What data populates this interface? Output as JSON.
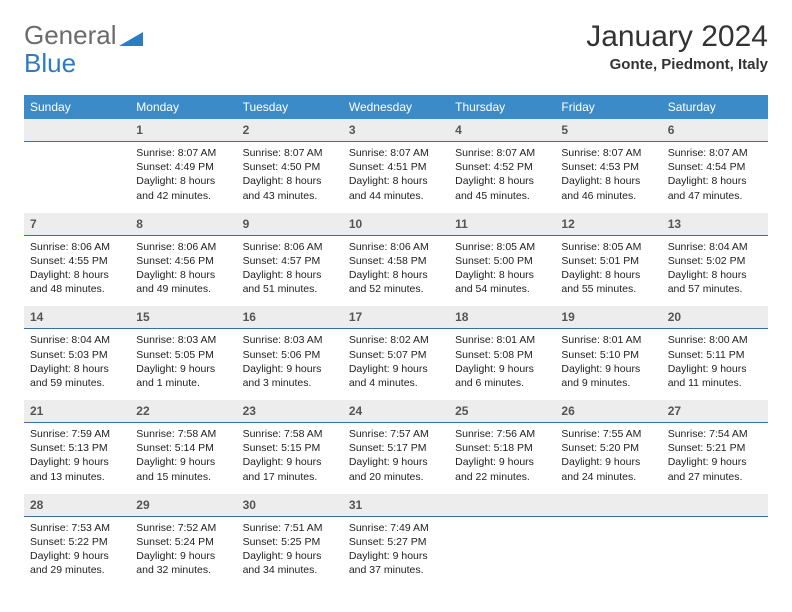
{
  "brand": {
    "part1": "General",
    "part2": "Blue"
  },
  "title": {
    "month": "January 2024",
    "location": "Gonte, Piedmont, Italy"
  },
  "colors": {
    "header_bg": "#3b8bc9",
    "header_text": "#ffffff",
    "daynum_bg": "#ededed",
    "daynum_border": "#3b6ea5",
    "text": "#222222",
    "logo_gray": "#6b6b6b",
    "logo_blue": "#2d7bc4"
  },
  "weekdays": [
    "Sunday",
    "Monday",
    "Tuesday",
    "Wednesday",
    "Thursday",
    "Friday",
    "Saturday"
  ],
  "weeks": [
    [
      {
        "n": "",
        "sr": "",
        "ss": "",
        "dl": ""
      },
      {
        "n": "1",
        "sr": "Sunrise: 8:07 AM",
        "ss": "Sunset: 4:49 PM",
        "dl": "Daylight: 8 hours and 42 minutes."
      },
      {
        "n": "2",
        "sr": "Sunrise: 8:07 AM",
        "ss": "Sunset: 4:50 PM",
        "dl": "Daylight: 8 hours and 43 minutes."
      },
      {
        "n": "3",
        "sr": "Sunrise: 8:07 AM",
        "ss": "Sunset: 4:51 PM",
        "dl": "Daylight: 8 hours and 44 minutes."
      },
      {
        "n": "4",
        "sr": "Sunrise: 8:07 AM",
        "ss": "Sunset: 4:52 PM",
        "dl": "Daylight: 8 hours and 45 minutes."
      },
      {
        "n": "5",
        "sr": "Sunrise: 8:07 AM",
        "ss": "Sunset: 4:53 PM",
        "dl": "Daylight: 8 hours and 46 minutes."
      },
      {
        "n": "6",
        "sr": "Sunrise: 8:07 AM",
        "ss": "Sunset: 4:54 PM",
        "dl": "Daylight: 8 hours and 47 minutes."
      }
    ],
    [
      {
        "n": "7",
        "sr": "Sunrise: 8:06 AM",
        "ss": "Sunset: 4:55 PM",
        "dl": "Daylight: 8 hours and 48 minutes."
      },
      {
        "n": "8",
        "sr": "Sunrise: 8:06 AM",
        "ss": "Sunset: 4:56 PM",
        "dl": "Daylight: 8 hours and 49 minutes."
      },
      {
        "n": "9",
        "sr": "Sunrise: 8:06 AM",
        "ss": "Sunset: 4:57 PM",
        "dl": "Daylight: 8 hours and 51 minutes."
      },
      {
        "n": "10",
        "sr": "Sunrise: 8:06 AM",
        "ss": "Sunset: 4:58 PM",
        "dl": "Daylight: 8 hours and 52 minutes."
      },
      {
        "n": "11",
        "sr": "Sunrise: 8:05 AM",
        "ss": "Sunset: 5:00 PM",
        "dl": "Daylight: 8 hours and 54 minutes."
      },
      {
        "n": "12",
        "sr": "Sunrise: 8:05 AM",
        "ss": "Sunset: 5:01 PM",
        "dl": "Daylight: 8 hours and 55 minutes."
      },
      {
        "n": "13",
        "sr": "Sunrise: 8:04 AM",
        "ss": "Sunset: 5:02 PM",
        "dl": "Daylight: 8 hours and 57 minutes."
      }
    ],
    [
      {
        "n": "14",
        "sr": "Sunrise: 8:04 AM",
        "ss": "Sunset: 5:03 PM",
        "dl": "Daylight: 8 hours and 59 minutes."
      },
      {
        "n": "15",
        "sr": "Sunrise: 8:03 AM",
        "ss": "Sunset: 5:05 PM",
        "dl": "Daylight: 9 hours and 1 minute."
      },
      {
        "n": "16",
        "sr": "Sunrise: 8:03 AM",
        "ss": "Sunset: 5:06 PM",
        "dl": "Daylight: 9 hours and 3 minutes."
      },
      {
        "n": "17",
        "sr": "Sunrise: 8:02 AM",
        "ss": "Sunset: 5:07 PM",
        "dl": "Daylight: 9 hours and 4 minutes."
      },
      {
        "n": "18",
        "sr": "Sunrise: 8:01 AM",
        "ss": "Sunset: 5:08 PM",
        "dl": "Daylight: 9 hours and 6 minutes."
      },
      {
        "n": "19",
        "sr": "Sunrise: 8:01 AM",
        "ss": "Sunset: 5:10 PM",
        "dl": "Daylight: 9 hours and 9 minutes."
      },
      {
        "n": "20",
        "sr": "Sunrise: 8:00 AM",
        "ss": "Sunset: 5:11 PM",
        "dl": "Daylight: 9 hours and 11 minutes."
      }
    ],
    [
      {
        "n": "21",
        "sr": "Sunrise: 7:59 AM",
        "ss": "Sunset: 5:13 PM",
        "dl": "Daylight: 9 hours and 13 minutes."
      },
      {
        "n": "22",
        "sr": "Sunrise: 7:58 AM",
        "ss": "Sunset: 5:14 PM",
        "dl": "Daylight: 9 hours and 15 minutes."
      },
      {
        "n": "23",
        "sr": "Sunrise: 7:58 AM",
        "ss": "Sunset: 5:15 PM",
        "dl": "Daylight: 9 hours and 17 minutes."
      },
      {
        "n": "24",
        "sr": "Sunrise: 7:57 AM",
        "ss": "Sunset: 5:17 PM",
        "dl": "Daylight: 9 hours and 20 minutes."
      },
      {
        "n": "25",
        "sr": "Sunrise: 7:56 AM",
        "ss": "Sunset: 5:18 PM",
        "dl": "Daylight: 9 hours and 22 minutes."
      },
      {
        "n": "26",
        "sr": "Sunrise: 7:55 AM",
        "ss": "Sunset: 5:20 PM",
        "dl": "Daylight: 9 hours and 24 minutes."
      },
      {
        "n": "27",
        "sr": "Sunrise: 7:54 AM",
        "ss": "Sunset: 5:21 PM",
        "dl": "Daylight: 9 hours and 27 minutes."
      }
    ],
    [
      {
        "n": "28",
        "sr": "Sunrise: 7:53 AM",
        "ss": "Sunset: 5:22 PM",
        "dl": "Daylight: 9 hours and 29 minutes."
      },
      {
        "n": "29",
        "sr": "Sunrise: 7:52 AM",
        "ss": "Sunset: 5:24 PM",
        "dl": "Daylight: 9 hours and 32 minutes."
      },
      {
        "n": "30",
        "sr": "Sunrise: 7:51 AM",
        "ss": "Sunset: 5:25 PM",
        "dl": "Daylight: 9 hours and 34 minutes."
      },
      {
        "n": "31",
        "sr": "Sunrise: 7:49 AM",
        "ss": "Sunset: 5:27 PM",
        "dl": "Daylight: 9 hours and 37 minutes."
      },
      {
        "n": "",
        "sr": "",
        "ss": "",
        "dl": ""
      },
      {
        "n": "",
        "sr": "",
        "ss": "",
        "dl": ""
      },
      {
        "n": "",
        "sr": "",
        "ss": "",
        "dl": ""
      }
    ]
  ]
}
